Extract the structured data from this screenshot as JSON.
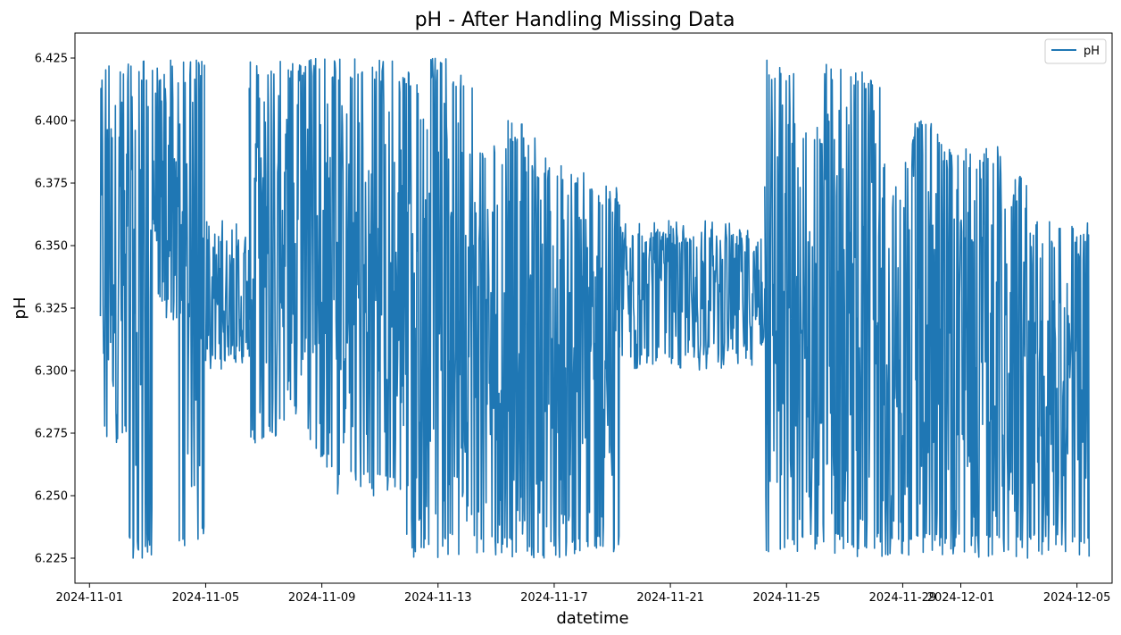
{
  "chart_data": {
    "type": "line",
    "title": "pH - After Handling Missing Data",
    "xlabel": "datetime",
    "ylabel": "pH",
    "ylim": [
      6.215,
      6.435
    ],
    "xlim": [
      "2024-10-31T12:00",
      "2024-12-06T05:00"
    ],
    "x_ticks": [
      "2024-11-01",
      "2024-11-05",
      "2024-11-09",
      "2024-11-13",
      "2024-11-17",
      "2024-11-21",
      "2024-11-25",
      "2024-11-29",
      "2024-12-01",
      "2024-12-05"
    ],
    "x_tick_labels": [
      "2024-11-01",
      "2024-11-05",
      "2024-11-09",
      "2024-11-13",
      "2024-11-17",
      "2024-11-21",
      "2024-11-25",
      "2024-11-29",
      "2024-12-01",
      "2024-12-05"
    ],
    "y_ticks": [
      6.225,
      6.25,
      6.275,
      6.3,
      6.325,
      6.35,
      6.375,
      6.4,
      6.425
    ],
    "y_tick_labels": [
      "6.225",
      "6.250",
      "6.275",
      "6.300",
      "6.325",
      "6.350",
      "6.375",
      "6.400",
      "6.425"
    ],
    "legend": {
      "position": "top-right",
      "entries": [
        "pH"
      ]
    },
    "grid": false,
    "series": [
      {
        "name": "pH",
        "color": "#1f77b4",
        "segments": [
          {
            "x_start": "2024-11-01T09:00",
            "x_end": "2024-11-04T23:00",
            "range_by_day": [
              [
                6.27,
                6.425
              ],
              [
                6.225,
                6.425
              ],
              [
                6.32,
                6.425
              ],
              [
                6.23,
                6.425
              ]
            ]
          },
          {
            "x_start": "2024-11-05T00:00",
            "x_end": "2024-11-06T12:00",
            "range_by_day": [
              [
                6.3,
                6.36
              ],
              [
                6.3,
                6.36
              ]
            ]
          },
          {
            "x_start": "2024-11-06T12:00",
            "x_end": "2024-11-11T12:00",
            "range_by_day": [
              [
                6.27,
                6.425
              ],
              [
                6.28,
                6.425
              ],
              [
                6.26,
                6.425
              ],
              [
                6.25,
                6.425
              ],
              [
                6.25,
                6.425
              ]
            ]
          },
          {
            "x_start": "2024-11-11T12:00",
            "x_end": "2024-11-19T06:00",
            "range_by_day": [
              [
                6.225,
                6.42
              ],
              [
                6.225,
                6.425
              ],
              [
                6.225,
                6.42
              ],
              [
                6.225,
                6.39
              ],
              [
                6.225,
                6.4
              ],
              [
                6.225,
                6.385
              ],
              [
                6.225,
                6.38
              ],
              [
                6.225,
                6.375
              ]
            ]
          },
          {
            "x_start": "2024-11-19T06:00",
            "x_end": "2024-11-24T06:00",
            "range_by_day": [
              [
                6.3,
                6.36
              ],
              [
                6.3,
                6.36
              ],
              [
                6.3,
                6.36
              ],
              [
                6.3,
                6.36
              ],
              [
                6.3,
                6.36
              ]
            ]
          },
          {
            "x_start": "2024-11-24T06:00",
            "x_end": "2024-12-05T10:00",
            "range_by_day": [
              [
                6.225,
                6.425
              ],
              [
                6.225,
                6.4
              ],
              [
                6.225,
                6.425
              ],
              [
                6.225,
                6.42
              ],
              [
                6.225,
                6.39
              ],
              [
                6.225,
                6.4
              ],
              [
                6.225,
                6.39
              ],
              [
                6.225,
                6.39
              ],
              [
                6.225,
                6.38
              ],
              [
                6.225,
                6.36
              ],
              [
                6.225,
                6.36
              ]
            ]
          }
        ]
      }
    ]
  }
}
